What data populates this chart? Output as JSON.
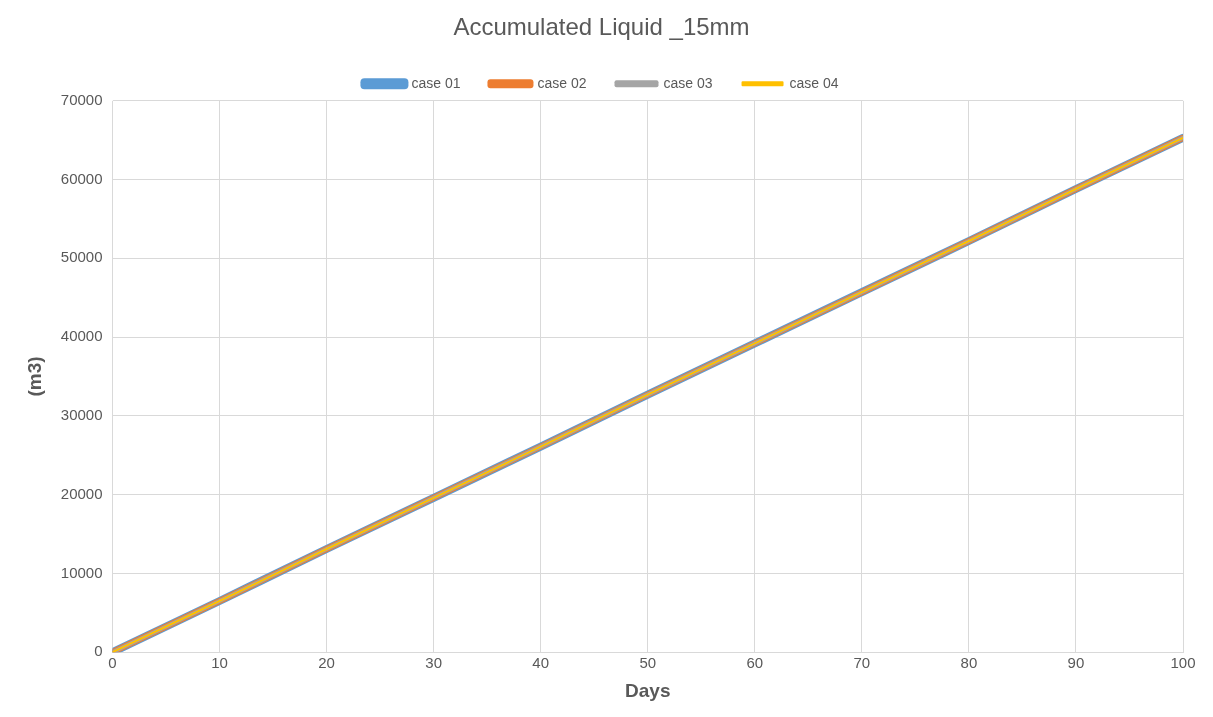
{
  "chart_data": {
    "type": "line",
    "title": "Accumulated Liquid _15mm",
    "xlabel": "Days",
    "ylabel": "(m3)",
    "x": [
      0,
      10,
      20,
      30,
      40,
      50,
      60,
      70,
      80,
      90,
      100
    ],
    "series": [
      {
        "name": "case 01",
        "color": "#5b9bd5",
        "values": [
          0,
          6500,
          13100,
          19600,
          26100,
          32700,
          39200,
          45700,
          52200,
          58800,
          65300
        ]
      },
      {
        "name": "case 02",
        "color": "#ed7d31",
        "values": [
          0,
          6500,
          13100,
          19600,
          26100,
          32700,
          39200,
          45700,
          52200,
          58800,
          65300
        ]
      },
      {
        "name": "case 03",
        "color": "#a5a5a5",
        "values": [
          0,
          6500,
          13100,
          19600,
          26100,
          32700,
          39200,
          45700,
          52200,
          58800,
          65300
        ]
      },
      {
        "name": "case 04",
        "color": "#ffc000",
        "values": [
          0,
          6500,
          13100,
          19600,
          26100,
          32700,
          39200,
          45700,
          52200,
          58800,
          65300
        ]
      }
    ],
    "xlim": [
      0,
      100
    ],
    "xticks": [
      0,
      10,
      20,
      30,
      40,
      50,
      60,
      70,
      80,
      90,
      100
    ],
    "ylim": [
      0,
      70000
    ],
    "yticks": [
      0,
      10000,
      20000,
      30000,
      40000,
      50000,
      60000,
      70000
    ],
    "grid": true,
    "legend": "top",
    "marker": "none",
    "line_style": "solid"
  }
}
